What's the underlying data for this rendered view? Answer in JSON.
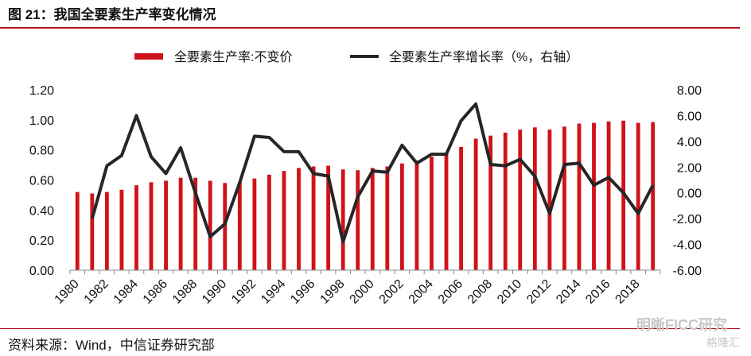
{
  "figure": {
    "title": "图 21：我国全要素生产率变化情况",
    "source": "资料来源：Wind，中信证券研究部",
    "watermark": "明晰FICC研究",
    "watermark_sub": "格隆汇"
  },
  "colors": {
    "bar": "#d0121b",
    "line": "#262626",
    "rule": "#b0131d"
  },
  "chart_data": {
    "type": "bar",
    "legend_position": "top",
    "grid": false,
    "x": [
      1980,
      1981,
      1982,
      1983,
      1984,
      1985,
      1986,
      1987,
      1988,
      1989,
      1990,
      1991,
      1992,
      1993,
      1994,
      1995,
      1996,
      1997,
      1998,
      1999,
      2000,
      2001,
      2002,
      2003,
      2004,
      2005,
      2006,
      2007,
      2008,
      2009,
      2010,
      2011,
      2012,
      2013,
      2014,
      2015,
      2016,
      2017,
      2018,
      2019
    ],
    "x_tick_labels": [
      "1980",
      "1982",
      "1984",
      "1986",
      "1988",
      "1990",
      "1992",
      "1994",
      "1996",
      "1998",
      "2000",
      "2002",
      "2004",
      "2006",
      "2008",
      "2010",
      "2012",
      "2014",
      "2016",
      "2018"
    ],
    "y_left": {
      "ylim": [
        0,
        1.2
      ],
      "ticks": [
        "0.00",
        "0.20",
        "0.40",
        "0.60",
        "0.80",
        "1.00",
        "1.20"
      ]
    },
    "y_right": {
      "ylim": [
        -6,
        8
      ],
      "ticks": [
        "-6.00",
        "-4.00",
        "-2.00",
        "0.00",
        "2.00",
        "4.00",
        "6.00",
        "8.00"
      ]
    },
    "series": [
      {
        "name": "全要素生产率:不变价",
        "type": "bar",
        "axis": "left",
        "values": [
          0.52,
          0.51,
          0.52,
          0.535,
          0.565,
          0.585,
          0.595,
          0.615,
          0.615,
          0.595,
          0.58,
          0.585,
          0.61,
          0.635,
          0.66,
          0.68,
          0.69,
          0.695,
          0.67,
          0.665,
          0.68,
          0.69,
          0.71,
          0.73,
          0.755,
          0.775,
          0.82,
          0.875,
          0.895,
          0.915,
          0.935,
          0.95,
          0.935,
          0.955,
          0.975,
          0.98,
          0.99,
          0.995,
          0.98,
          0.985
        ]
      },
      {
        "name": "全要素生产率增长率（%，右轴）",
        "type": "line",
        "axis": "right",
        "values": [
          null,
          -2.0,
          2.1,
          2.9,
          6.0,
          2.8,
          1.5,
          3.5,
          0.0,
          -3.4,
          -2.4,
          0.8,
          4.4,
          4.3,
          3.2,
          3.2,
          1.5,
          1.3,
          -3.8,
          -0.3,
          1.7,
          1.6,
          3.7,
          2.3,
          3.0,
          3.0,
          5.6,
          6.9,
          2.2,
          2.1,
          2.6,
          1.3,
          -1.6,
          2.2,
          2.3,
          0.6,
          1.2,
          0.0,
          -1.6,
          0.6
        ]
      }
    ]
  }
}
